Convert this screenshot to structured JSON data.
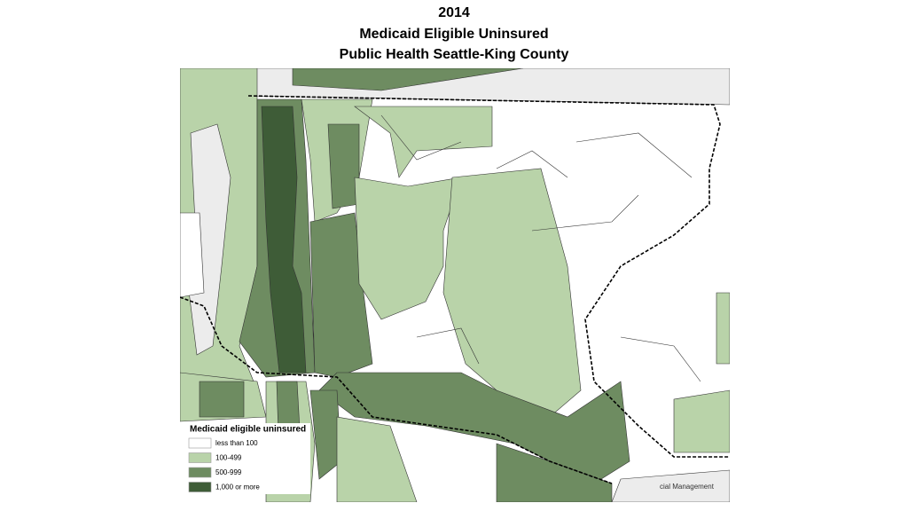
{
  "title": {
    "lines": [
      "2014",
      "Medicaid Eligible Uninsured",
      "Public Health Seattle-King County"
    ]
  },
  "legend": {
    "title": "Medicaid eligible uninsured",
    "items": [
      {
        "label": "less than 100",
        "color": "#ffffff"
      },
      {
        "label": "100-499",
        "color": "#b9d3a9"
      },
      {
        "label": "500-999",
        "color": "#6e8c61"
      },
      {
        "label": "1,000 or more",
        "color": "#3e5c37"
      }
    ]
  },
  "credit": "cial Management"
}
